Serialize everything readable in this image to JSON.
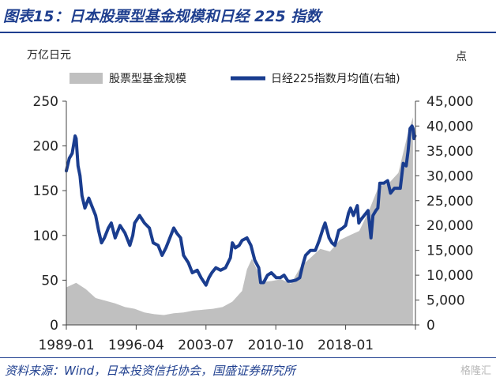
{
  "header": {
    "title": "图表15：日本股票型基金规模和日经 225 指数"
  },
  "footer": {
    "source": "资料来源：Wind，日本投资信托协会，国盛证券研究所",
    "watermark": "格隆汇"
  },
  "colors": {
    "fund_area": "#c0c0c0",
    "nikkei_line": "#1a3d8f",
    "title": "#1f3f8f"
  },
  "chart_data": {
    "type": "area",
    "x_tick_labels": [
      "1989-01",
      "1996-04",
      "2003-07",
      "2010-10",
      "2018-01"
    ],
    "y_left": {
      "unit": "万亿日元",
      "ticks": [
        0,
        50,
        100,
        150,
        200,
        250
      ],
      "range": [
        0,
        250
      ]
    },
    "y_right": {
      "unit": "点",
      "ticks": [
        "0",
        "5,000",
        "10,000",
        "15,000",
        "20,000",
        "25,000",
        "30,000",
        "35,000",
        "40,000",
        "45,000"
      ],
      "range": [
        0,
        45000
      ]
    },
    "legend": {
      "placement": "top",
      "entries": [
        "股票型基金规模",
        "日经225指数月均值(右轴)"
      ]
    },
    "grid": false,
    "series": [
      {
        "name": "股票型基金规模",
        "axis": "left",
        "type": "area",
        "x": [
          1989.0,
          1990.0,
          1991.0,
          1992.0,
          1993.0,
          1994.0,
          1995.0,
          1996.0,
          1997.0,
          1998.0,
          1999.0,
          2000.0,
          2001.0,
          2002.0,
          2003.0,
          2004.0,
          2005.0,
          2006.0,
          2007.0,
          2007.5,
          2008.0,
          2008.5,
          2009.0,
          2010.0,
          2011.0,
          2012.0,
          2013.0,
          2014.0,
          2015.0,
          2016.0,
          2017.0,
          2018.0,
          2019.0,
          2020.0,
          2021.0,
          2022.0,
          2023.0,
          2024.0,
          2024.5
        ],
        "values": [
          42,
          47,
          40,
          30,
          27,
          24,
          20,
          18,
          14,
          12,
          11,
          13,
          14,
          16,
          17,
          18,
          20,
          26,
          38,
          62,
          74,
          62,
          48,
          49,
          51,
          46,
          65,
          75,
          85,
          82,
          95,
          100,
          105,
          128,
          155,
          158,
          170,
          215,
          232
        ]
      },
      {
        "name": "日经225指数月均值(右轴)",
        "axis": "right",
        "type": "line",
        "x": [
          1989.0,
          1989.3,
          1989.6,
          1989.9,
          1990.0,
          1990.2,
          1990.4,
          1990.6,
          1990.9,
          1991.3,
          1991.6,
          1992.0,
          1992.3,
          1992.6,
          1992.9,
          1993.3,
          1993.6,
          1994.0,
          1994.5,
          1995.0,
          1995.5,
          1995.8,
          1996.0,
          1996.5,
          1997.0,
          1997.5,
          1997.9,
          1998.4,
          1998.8,
          1999.2,
          1999.6,
          2000.0,
          2000.3,
          2000.7,
          2001.0,
          2001.5,
          2001.9,
          2002.4,
          2002.8,
          2003.3,
          2003.6,
          2003.9,
          2004.3,
          2004.8,
          2005.3,
          2005.8,
          2006.0,
          2006.3,
          2006.7,
          2007.0,
          2007.5,
          2007.9,
          2008.3,
          2008.7,
          2008.9,
          2009.2,
          2009.6,
          2010.0,
          2010.5,
          2010.9,
          2011.3,
          2011.7,
          2012.0,
          2012.5,
          2012.9,
          2013.2,
          2013.5,
          2014.0,
          2014.5,
          2014.9,
          2015.3,
          2015.5,
          2015.9,
          2016.2,
          2016.5,
          2016.9,
          2017.3,
          2017.6,
          2017.9,
          2018.1,
          2018.4,
          2018.8,
          2018.95,
          2019.1,
          2019.5,
          2019.9,
          2020.2,
          2020.4,
          2020.7,
          2020.9,
          2021.1,
          2021.5,
          2021.9,
          2022.2,
          2022.6,
          2022.9,
          2023.2,
          2023.5,
          2023.8,
          2024.0,
          2024.2,
          2024.4,
          2024.5,
          2024.6,
          2024.7
        ],
        "values": [
          31000,
          33500,
          34500,
          38000,
          37500,
          32000,
          30000,
          26000,
          23500,
          25500,
          24000,
          22000,
          19000,
          16500,
          17500,
          19500,
          20500,
          17500,
          20000,
          18500,
          16000,
          18000,
          20500,
          22000,
          20500,
          19500,
          16500,
          16000,
          14000,
          15500,
          17500,
          19500,
          18500,
          17500,
          14000,
          12500,
          10500,
          11000,
          9500,
          8000,
          9500,
          10500,
          11500,
          11000,
          11500,
          13500,
          16500,
          15500,
          16000,
          17000,
          17500,
          16000,
          13000,
          11500,
          8500,
          8500,
          10000,
          10500,
          9500,
          9500,
          10000,
          8800,
          8800,
          9000,
          9500,
          12000,
          14000,
          15000,
          15000,
          17000,
          19500,
          20500,
          17500,
          16500,
          16000,
          19000,
          19500,
          20000,
          22500,
          23500,
          22000,
          24000,
          20500,
          21000,
          22000,
          23000,
          17500,
          22000,
          23000,
          23500,
          28500,
          28500,
          29000,
          26500,
          27500,
          27500,
          27500,
          32500,
          32000,
          35000,
          39500,
          40000,
          39500,
          37500,
          38000
        ]
      }
    ]
  }
}
